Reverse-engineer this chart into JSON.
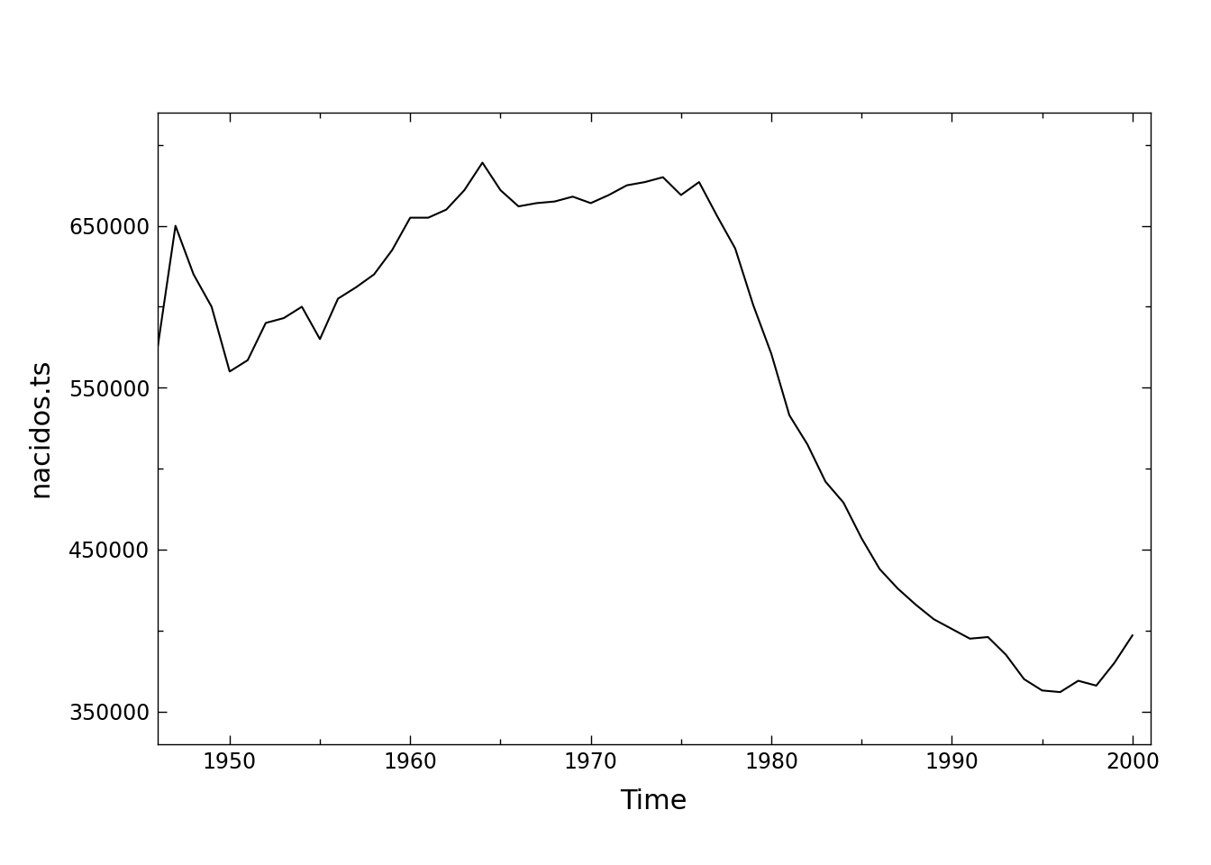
{
  "years": [
    1946,
    1947,
    1948,
    1949,
    1950,
    1951,
    1952,
    1953,
    1954,
    1955,
    1956,
    1957,
    1958,
    1959,
    1960,
    1961,
    1962,
    1963,
    1964,
    1965,
    1966,
    1967,
    1968,
    1969,
    1970,
    1971,
    1972,
    1973,
    1974,
    1975,
    1976,
    1977,
    1978,
    1979,
    1980,
    1981,
    1982,
    1983,
    1984,
    1985,
    1986,
    1987,
    1988,
    1989,
    1990,
    1991,
    1992,
    1993,
    1994,
    1995,
    1996,
    1997,
    1998,
    1999,
    2000
  ],
  "births": [
    574000,
    650000,
    620000,
    600000,
    560000,
    567000,
    590000,
    593000,
    600000,
    580000,
    605000,
    612000,
    620000,
    635000,
    655000,
    655000,
    660000,
    672000,
    689000,
    672000,
    662000,
    664000,
    665000,
    668000,
    664000,
    669000,
    675000,
    677000,
    680000,
    669000,
    677000,
    656000,
    636000,
    601000,
    571000,
    533000,
    515000,
    492000,
    479000,
    457000,
    438000,
    426000,
    416000,
    407000,
    401000,
    395000,
    396000,
    385000,
    370000,
    363000,
    362000,
    369000,
    366000,
    380000,
    397000
  ],
  "xlabel": "Time",
  "ylabel": "nacidos.ts",
  "line_color": "#000000",
  "line_width": 1.5,
  "background_color": "#ffffff",
  "xlim": [
    1946,
    2001
  ],
  "ylim": [
    330000,
    720000
  ],
  "xticks": [
    1950,
    1960,
    1970,
    1980,
    1990,
    2000
  ],
  "yticks": [
    350000,
    450000,
    550000,
    650000
  ],
  "ytick_labels": [
    "350000",
    "450000",
    "550000",
    "650000"
  ],
  "xtick_labels": [
    "1950",
    "1960",
    "1970",
    "1980",
    "1990",
    "2000"
  ],
  "tick_fontsize": 17,
  "label_fontsize": 22,
  "spine_color": "#000000"
}
